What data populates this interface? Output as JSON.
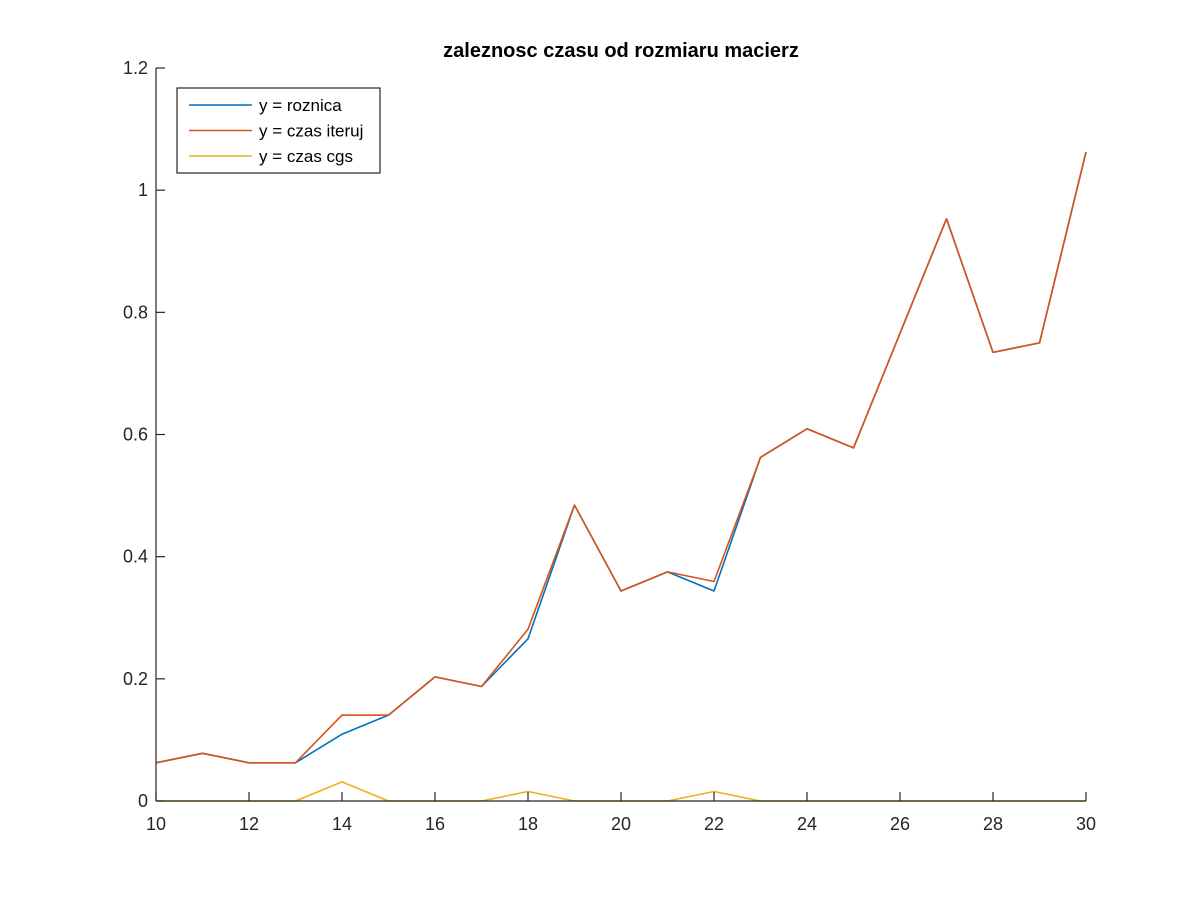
{
  "chart_data": {
    "type": "line",
    "title": "zaleznosc czasu od rozmiaru macierz",
    "xlabel": "",
    "ylabel": "",
    "xlim": [
      10,
      30
    ],
    "ylim": [
      0,
      1.2
    ],
    "x_ticks": [
      10,
      12,
      14,
      16,
      18,
      20,
      22,
      24,
      26,
      28,
      30
    ],
    "y_ticks": [
      0,
      0.2,
      0.4,
      0.6,
      0.8,
      1,
      1.2
    ],
    "x_tick_labels": [
      "10",
      "12",
      "14",
      "16",
      "18",
      "20",
      "22",
      "24",
      "26",
      "28",
      "30"
    ],
    "y_tick_labels": [
      "0",
      "0.2",
      "0.4",
      "0.6",
      "0.8",
      "1",
      "1.2"
    ],
    "grid": false,
    "legend_position": "top-left",
    "x": [
      10,
      11,
      12,
      13,
      14,
      15,
      16,
      17,
      18,
      19,
      20,
      21,
      22,
      23,
      24,
      25,
      26,
      27,
      28,
      29,
      30
    ],
    "series": [
      {
        "name": "y = roznica",
        "color": "#0072BD",
        "values": [
          0.0625,
          0.0781,
          0.0625,
          0.0625,
          0.1094,
          0.1406,
          0.2031,
          0.1875,
          0.2656,
          0.4844,
          0.3438,
          0.375,
          0.3438,
          0.5625,
          0.6094,
          0.5781,
          0.7656,
          0.9531,
          0.7344,
          0.75,
          1.0625
        ]
      },
      {
        "name": "y = czas iteruj",
        "color": "#D95319",
        "values": [
          0.0625,
          0.0781,
          0.0625,
          0.0625,
          0.1406,
          0.1406,
          0.2031,
          0.1875,
          0.2813,
          0.4844,
          0.3438,
          0.375,
          0.3594,
          0.5625,
          0.6094,
          0.5781,
          0.7656,
          0.9531,
          0.7344,
          0.75,
          1.0625
        ]
      },
      {
        "name": "y = czas cgs",
        "color": "#EDB120",
        "values": [
          0,
          0,
          0,
          0,
          0.0313,
          0,
          0,
          0,
          0.0156,
          0,
          0,
          0,
          0.0156,
          0,
          0,
          0,
          0,
          0,
          0,
          0,
          0
        ]
      }
    ]
  }
}
